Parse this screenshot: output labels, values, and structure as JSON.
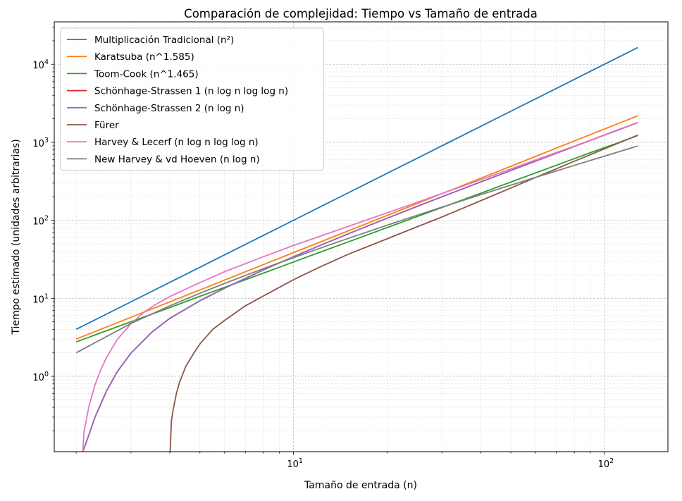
{
  "chart_data": {
    "type": "line",
    "title": "Comparación de complejidad: Tiempo vs Tamaño de entrada",
    "xlabel": "Tamaño de entrada (n)",
    "ylabel": "Tiempo estimado (unidades arbitrarias)",
    "x_scale": "log",
    "y_scale": "log",
    "xlim": [
      1.7,
      160
    ],
    "ylim": [
      0.108,
      35000
    ],
    "x_ticks": [
      {
        "value": 10,
        "label": "10^1"
      },
      {
        "value": 100,
        "label": "10^2"
      }
    ],
    "y_ticks": [
      {
        "value": 1,
        "label": "10^0"
      },
      {
        "value": 10,
        "label": "10^1"
      },
      {
        "value": 100,
        "label": "10^2"
      },
      {
        "value": 1000,
        "label": "10^3"
      },
      {
        "value": 10000,
        "label": "10^4"
      }
    ],
    "grid": "major+minor",
    "legend_position": "top-left",
    "series": [
      {
        "name": "Multiplicación Tradicional (n²)",
        "color": "#1f77b4",
        "x": [
          2,
          3,
          4,
          5,
          6,
          8,
          10,
          12,
          15,
          20,
          25,
          30,
          40,
          50,
          60,
          70,
          80,
          90,
          100,
          110,
          128
        ],
        "y": [
          4,
          9,
          16,
          25,
          36,
          64,
          100,
          144,
          225,
          400,
          625,
          900,
          1600,
          2500,
          3600,
          4900,
          6400,
          8100,
          10000,
          12100,
          16384
        ]
      },
      {
        "name": "Karatsuba (n^1.585)",
        "color": "#ff7f0e",
        "x": [
          2,
          3,
          4,
          5,
          6,
          8,
          10,
          12,
          15,
          20,
          25,
          30,
          40,
          50,
          60,
          70,
          80,
          90,
          100,
          110,
          128
        ],
        "y": [
          3,
          5.7,
          9,
          12.8,
          17.1,
          27,
          38.5,
          51.4,
          73.2,
          115.3,
          164.2,
          219.7,
          346,
          492.4,
          658.3,
          842.5,
          1039,
          1253,
          1479,
          1721,
          2186
        ]
      },
      {
        "name": "Toom-Cook (n^1.465)",
        "color": "#2ca02c",
        "x": [
          2,
          3,
          4,
          5,
          6,
          8,
          10,
          12,
          15,
          20,
          25,
          30,
          40,
          50,
          60,
          70,
          80,
          90,
          100,
          110,
          128
        ],
        "y": [
          2.76,
          5,
          7.6,
          10.6,
          13.8,
          21,
          29.2,
          38.2,
          52.8,
          80.6,
          111.6,
          145.8,
          222.3,
          309,
          404.3,
          507.4,
          617.6,
          734.9,
          853.1,
          977,
          1221
        ]
      },
      {
        "name": "Schönhage-Strassen 1 (n log n log log n)",
        "color": "#d62728",
        "x": [
          2.1,
          2.2,
          2.3,
          2.5,
          2.7,
          3,
          3.5,
          4,
          5,
          6,
          8,
          10,
          12,
          15,
          20,
          25,
          30,
          40,
          50,
          60,
          70,
          80,
          90,
          100,
          110,
          128
        ],
        "y": [
          0.107,
          0.18,
          0.3,
          0.64,
          1.12,
          1.98,
          3.67,
          5.53,
          9.29,
          13.44,
          23.1,
          34.1,
          46.5,
          67.1,
          106.3,
          150.8,
          199.9,
          310.4,
          434.8,
          572.4,
          722.1,
          884.3,
          1057,
          1239,
          1432,
          1792
        ]
      },
      {
        "name": "Schönhage-Strassen 2 (n log n)",
        "color": "#9467bd",
        "x": [
          2.1,
          2.2,
          2.3,
          2.5,
          2.7,
          3,
          3.5,
          4,
          5,
          6,
          8,
          10,
          12,
          15,
          20,
          25,
          30,
          40,
          50,
          60,
          70,
          80,
          90,
          100,
          110,
          128
        ],
        "y": [
          0.107,
          0.18,
          0.3,
          0.64,
          1.12,
          1.98,
          3.67,
          5.53,
          9.29,
          13.44,
          23.1,
          34.1,
          46.5,
          67.1,
          106.3,
          150.8,
          199.9,
          310.4,
          434.8,
          572.4,
          722.1,
          884.3,
          1057,
          1239,
          1432,
          1792
        ]
      },
      {
        "name": "Fürer",
        "color": "#8c564b",
        "x": [
          4.01,
          4.05,
          4.1,
          4.2,
          4.3,
          4.5,
          4.8,
          5,
          5.5,
          6,
          7,
          8,
          10,
          12,
          15,
          20,
          25,
          30,
          40,
          50,
          60,
          70,
          80,
          90,
          100,
          110,
          128
        ],
        "y": [
          0.108,
          0.27,
          0.37,
          0.6,
          0.84,
          1.33,
          2.04,
          2.6,
          4,
          5.2,
          8,
          10.7,
          17.3,
          24.6,
          36.7,
          57.9,
          82.7,
          110.1,
          178.1,
          259.2,
          353.1,
          456.4,
          571.2,
          693.5,
          825.2,
          963.9,
          1235
        ]
      },
      {
        "name": "Harvey & Lecerf (n log n log log n)",
        "color": "#e377c2",
        "x": [
          2.1,
          2.12,
          2.15,
          2.2,
          2.3,
          2.4,
          2.5,
          2.7,
          3,
          3.3,
          3.6,
          4,
          4.5,
          5,
          6,
          7,
          8,
          10,
          12,
          15,
          20,
          25,
          30,
          40,
          50,
          60,
          70,
          80,
          90,
          100,
          110,
          128
        ],
        "y": [
          0.108,
          0.2,
          0.26,
          0.42,
          0.78,
          1.22,
          1.72,
          2.9,
          4.72,
          6.6,
          8.3,
          10.5,
          13.1,
          15.9,
          21.9,
          27.8,
          34.1,
          47.5,
          61.2,
          83.5,
          124.6,
          170.1,
          219.7,
          331.2,
          455.6,
          591.8,
          738.3,
          893.3,
          1058,
          1232,
          1413,
          1792
        ]
      },
      {
        "name": "New Harvey & vd Hoeven (n log n)",
        "color": "#7f7f7f",
        "x": [
          2,
          3,
          4,
          5,
          6,
          8,
          10,
          12,
          15,
          20,
          25,
          30,
          40,
          50,
          60,
          70,
          80,
          90,
          100,
          110,
          128
        ],
        "y": [
          2,
          4.75,
          8,
          11.6,
          15.5,
          24,
          33.2,
          43,
          58.6,
          86.4,
          116.1,
          147.2,
          212.9,
          282.2,
          354.4,
          429,
          505.8,
          584.3,
          664.4,
          746,
          896
        ]
      }
    ]
  }
}
